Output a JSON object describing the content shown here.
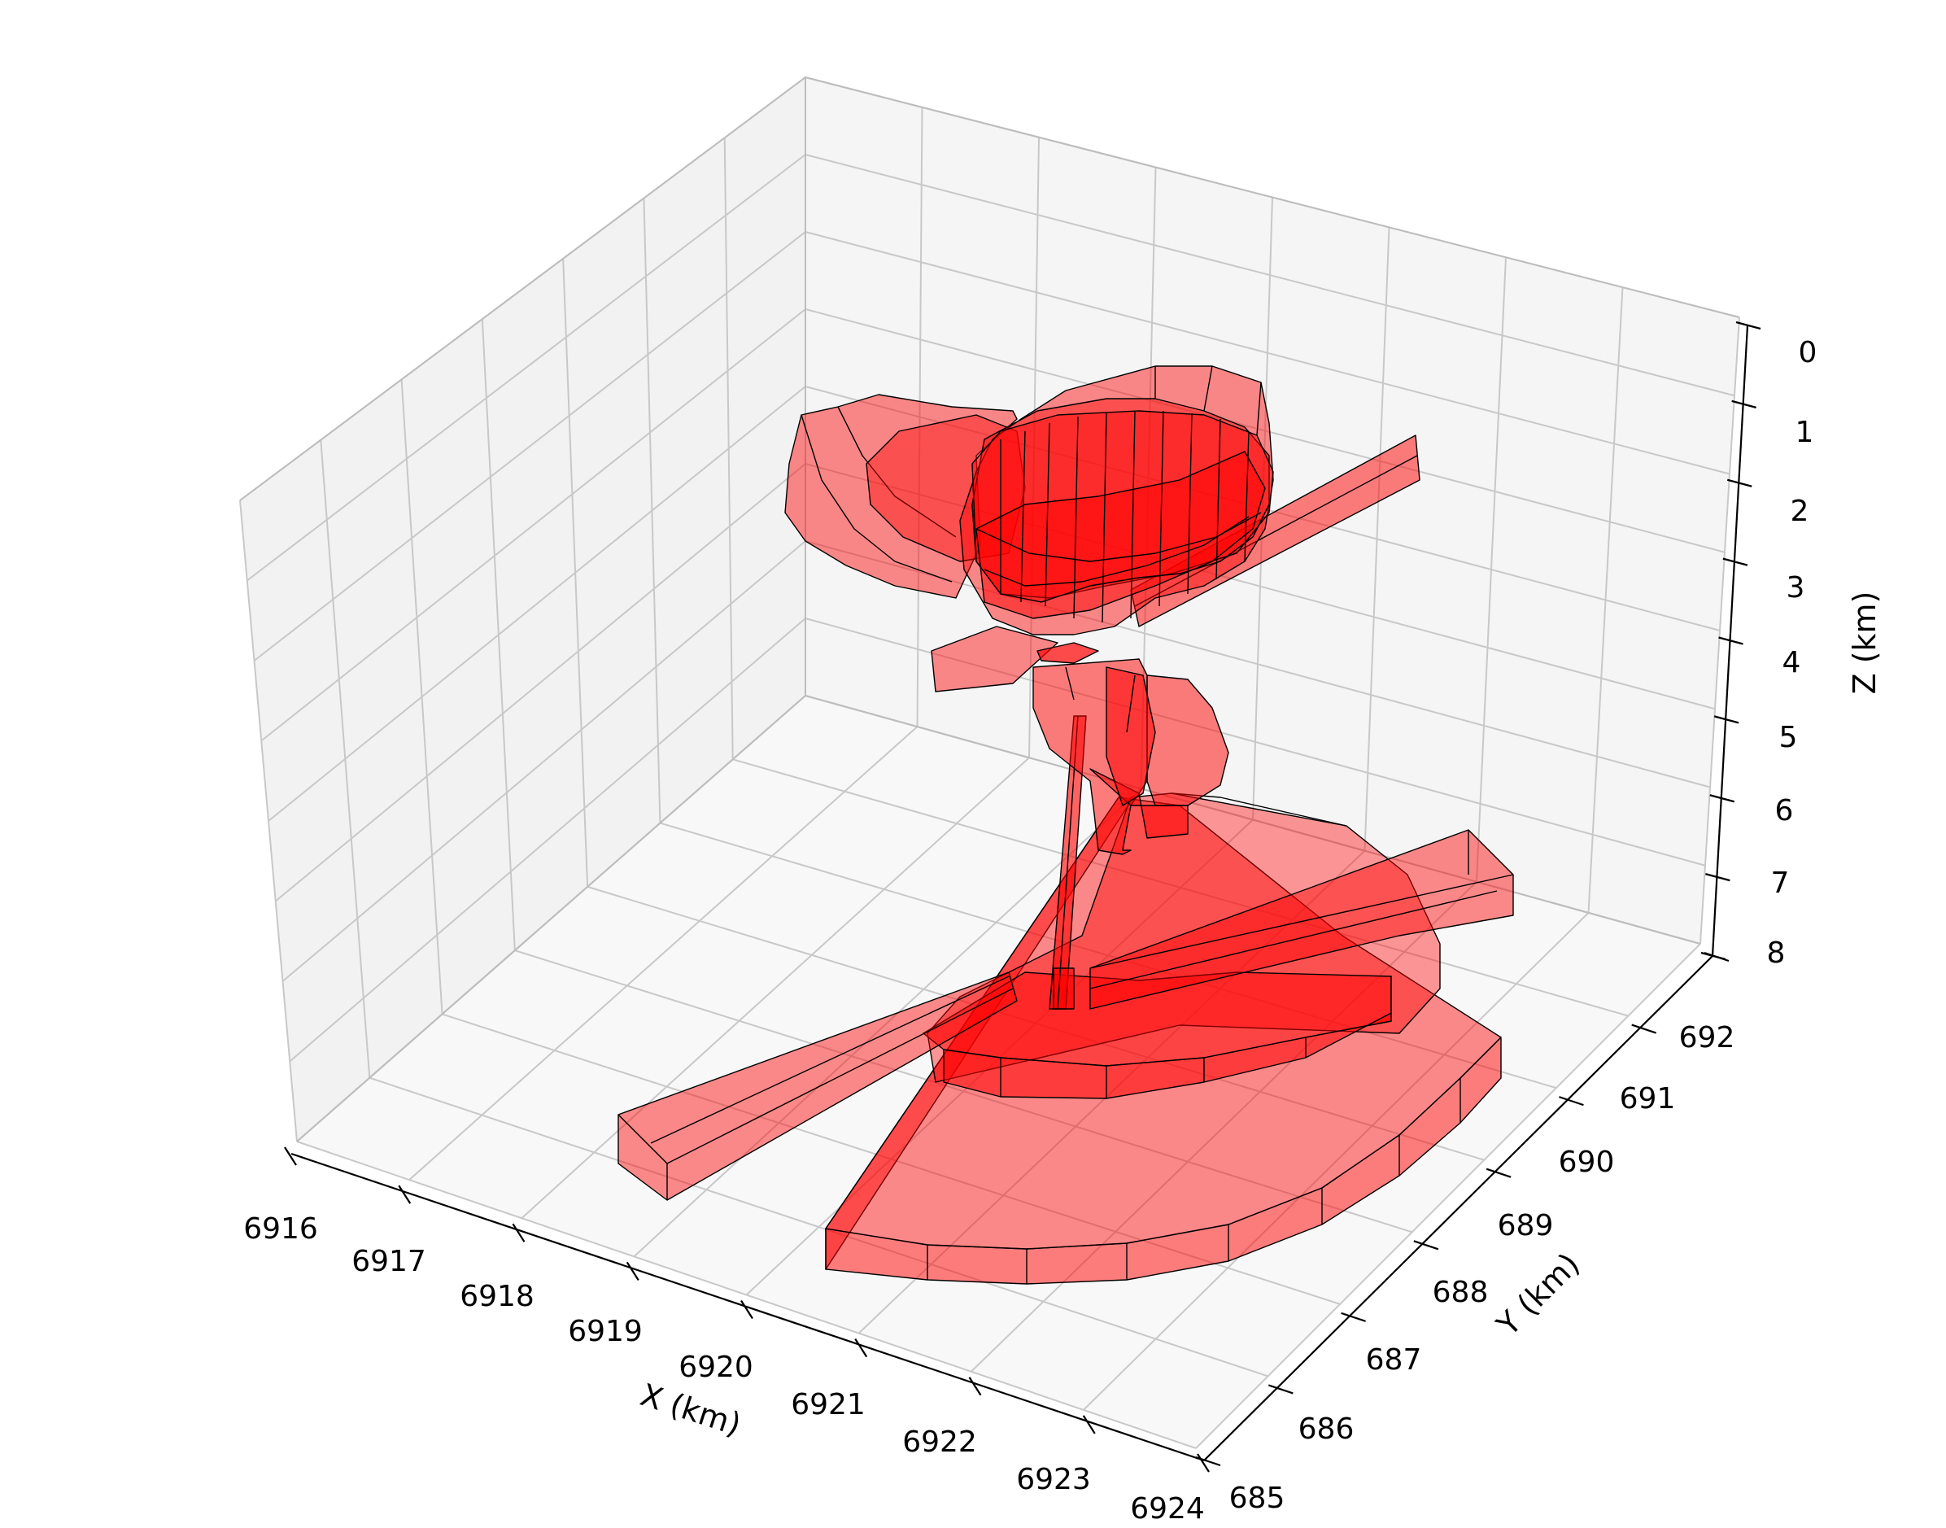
{
  "chart_data": {
    "type": "3d-surface",
    "title": "",
    "x_axis": {
      "label": "X (km)",
      "range": [
        6916,
        6924
      ],
      "ticks": [
        "6916",
        "6917",
        "6918",
        "6919",
        "6920",
        "6921",
        "6922",
        "6923",
        "6924"
      ]
    },
    "y_axis": {
      "label": "Y (km)",
      "range": [
        685,
        692
      ],
      "ticks": [
        "685",
        "686",
        "687",
        "688",
        "689",
        "690",
        "691",
        "692"
      ]
    },
    "z_axis": {
      "label": "Z (km)",
      "range": [
        0,
        8
      ],
      "inverted": true,
      "ticks": [
        "0",
        "1",
        "2",
        "3",
        "4",
        "5",
        "6",
        "7",
        "8"
      ]
    },
    "grid": true,
    "legend": "none",
    "colors": {
      "body_fill": "#ff0000",
      "body_edge": "#000000",
      "pane_left": "#ebebeb",
      "pane_back": "#f2f2f2",
      "pane_floor": "#f5f5f5",
      "grid": "#c4c4c4"
    },
    "series": [
      {
        "kind": "bodies",
        "description_shapes": [
          "upper cluster of ellipsoidal shells at Z 1-4 km",
          "thin tilted plate through the upper cluster",
          "small plate near Z 4 km",
          "central pipe / conduit Z 4-6.5 km",
          "thin vertical dike to base",
          "large fan-shaped sector at Z ~7.5 km",
          "elliptical slab at Z ~7.5 km",
          "two long dipping bars at Z ~7-7.5 km"
        ]
      }
    ]
  }
}
